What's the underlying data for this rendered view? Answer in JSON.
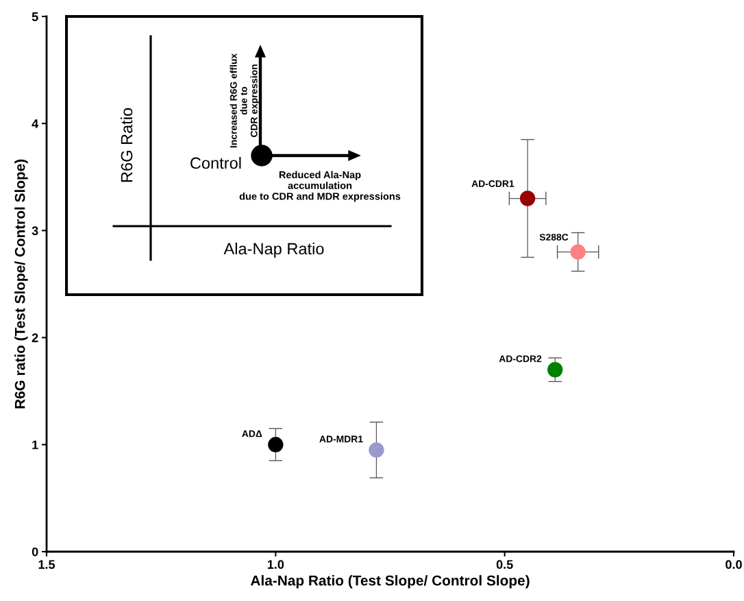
{
  "chart_data": {
    "type": "scatter",
    "xlabel": "Ala-Nap Ratio (Test Slope/ Control Slope)",
    "ylabel": "R6G ratio (Test Slope/ Control Slope)",
    "xlim": [
      1.5,
      0.0
    ],
    "xticks": [
      {
        "value": 1.5,
        "label": "1.5"
      },
      {
        "value": 1.0,
        "label": "1.0"
      },
      {
        "value": 0.5,
        "label": "0.5"
      },
      {
        "value": 0.0,
        "label": "0.0"
      }
    ],
    "ylim": [
      0,
      5
    ],
    "yticks": [
      0,
      1,
      2,
      3,
      4,
      5
    ],
    "grid": false,
    "legend": false,
    "marker": "circle",
    "series": [
      {
        "name": "ADΔ",
        "color": "#000000",
        "x": [
          1.0
        ],
        "values": [
          1.0
        ],
        "errors": [
          0.15
        ]
      },
      {
        "name": "AD-MDR1",
        "color": "#9999cc",
        "x": [
          0.78
        ],
        "values": [
          0.95
        ],
        "errors": [
          0.26
        ]
      },
      {
        "name": "AD-CDR1",
        "color": "#990000",
        "x": [
          0.45
        ],
        "values": [
          3.3
        ],
        "errors": [
          0.55
        ],
        "xerrors": [
          0.04
        ]
      },
      {
        "name": "S288C",
        "color": "#ff8080",
        "x": [
          0.34
        ],
        "values": [
          2.8
        ],
        "errors": [
          0.18
        ],
        "xerrors": [
          0.045
        ]
      },
      {
        "name": "AD-CDR2",
        "color": "#008000",
        "x": [
          0.39
        ],
        "values": [
          1.7
        ],
        "errors": [
          0.11
        ]
      }
    ],
    "annotations": [
      "R6G Ratio",
      "Ala-Nap Ratio",
      "Control",
      "Increased R6G efflux\ndue to\nCDR expression",
      "Reduced Ala-Nap\naccumulation\ndue to CDR and MDR expressions"
    ]
  }
}
